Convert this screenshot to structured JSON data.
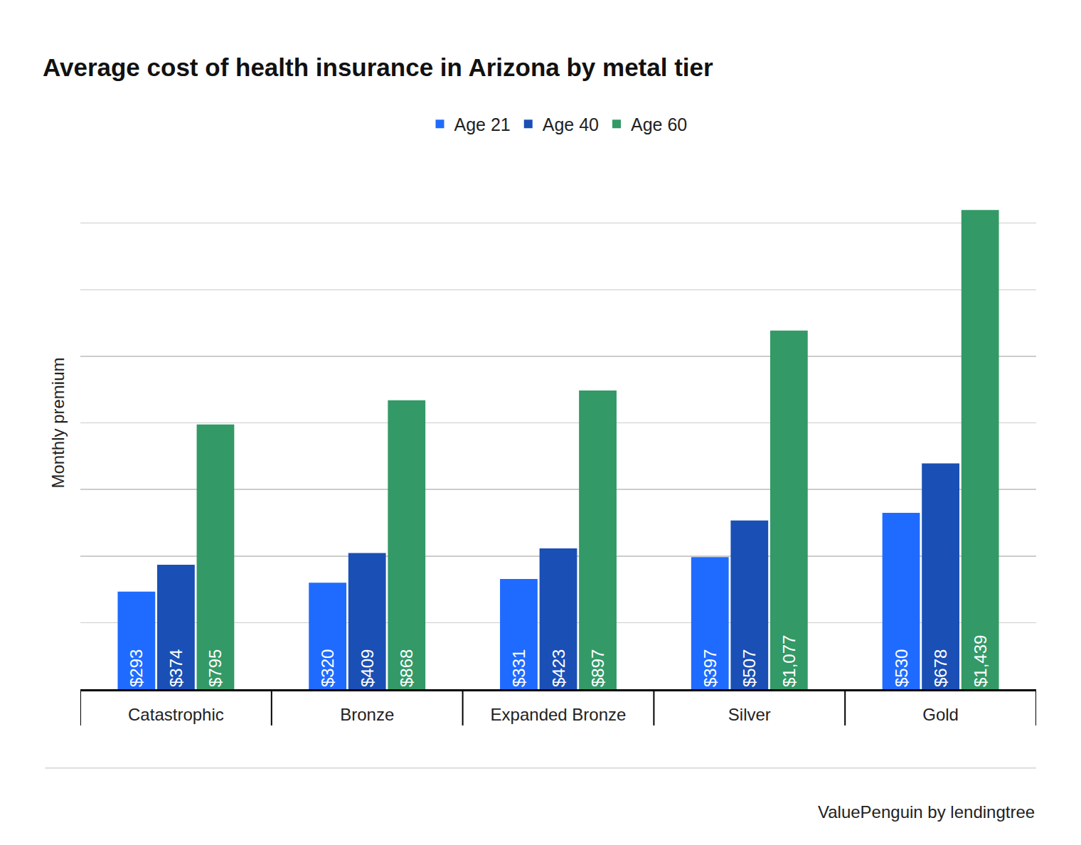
{
  "chart_data": {
    "type": "bar",
    "title": "Average cost of health insurance in Arizona by metal tier",
    "y_label": "Monthly premium",
    "categories": [
      "Catastrophic",
      "Bronze",
      "Expanded Bronze",
      "Silver",
      "Gold"
    ],
    "series": [
      {
        "name": "Age 21",
        "color": "#1f6bff",
        "values": [
          293,
          320,
          331,
          397,
          530
        ],
        "value_labels": [
          "$293",
          "$320",
          "$331",
          "$397",
          "$530"
        ]
      },
      {
        "name": "Age 40",
        "color": "#1a4fb5",
        "values": [
          374,
          409,
          423,
          507,
          678
        ],
        "value_labels": [
          "$374",
          "$409",
          "$423",
          "$507",
          "$678"
        ]
      },
      {
        "name": "Age 60",
        "color": "#339966",
        "values": [
          795,
          868,
          897,
          1077,
          1439
        ],
        "value_labels": [
          "$795",
          "$868",
          "$897",
          "$1,077",
          "$1,439"
        ]
      }
    ],
    "ylim": [
      0,
      1600
    ],
    "yticks": [
      0,
      200,
      400,
      600,
      800,
      1000,
      1200,
      1400,
      1600
    ],
    "grid": true,
    "legend": "top",
    "data_labels": true,
    "tick_labels": "x",
    "annotations": [
      "ValuePenguin by lendingtree"
    ]
  }
}
